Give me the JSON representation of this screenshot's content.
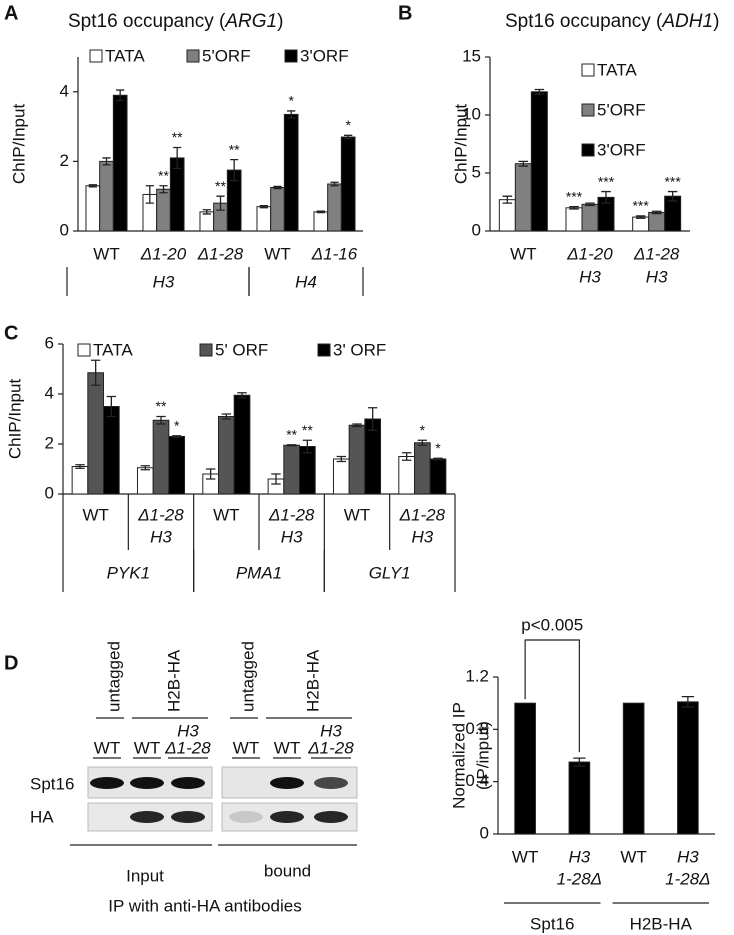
{
  "panels": [
    "A",
    "B",
    "C",
    "D"
  ],
  "chart_data": [
    {
      "type": "bar",
      "title": [
        "Spt16 occupancy (",
        "ARG1",
        ")"
      ],
      "ylabel": "ChIP/Input",
      "categories": [
        "WT",
        "Δ1-20",
        "Δ1-28",
        "WT",
        "Δ1-16"
      ],
      "groups": [
        "H3",
        "H3",
        "H3",
        "H4",
        "H4"
      ],
      "ylim": [
        0,
        5
      ],
      "yticks": [
        0,
        2,
        4
      ],
      "legend": "top",
      "series": [
        {
          "name": "TATA",
          "color": "#ffffff",
          "values": [
            1.3,
            1.05,
            0.55,
            0.7,
            0.55
          ],
          "errors": [
            0.03,
            0.25,
            0.06,
            0.03,
            0.02
          ],
          "stars": [
            null,
            null,
            null,
            null,
            null
          ]
        },
        {
          "name": "5'ORF",
          "color": "#808080",
          "values": [
            2.0,
            1.2,
            0.8,
            1.25,
            1.35
          ],
          "errors": [
            0.1,
            0.1,
            0.2,
            0.03,
            0.05
          ],
          "stars": [
            null,
            "**",
            "**",
            null,
            null
          ]
        },
        {
          "name": "3'ORF",
          "color": "#000000",
          "values": [
            3.9,
            2.1,
            1.75,
            3.35,
            2.7
          ],
          "errors": [
            0.15,
            0.3,
            0.3,
            0.1,
            0.05
          ],
          "stars": [
            null,
            "**",
            "**",
            "*",
            "*"
          ]
        }
      ]
    },
    {
      "type": "bar",
      "title": [
        "Spt16 occupancy (",
        "ADH1",
        ")"
      ],
      "ylabel": "ChIP/Input",
      "categories": [
        "WT",
        "Δ1-20",
        "Δ1-28"
      ],
      "category_line2": [
        null,
        "H3",
        "H3"
      ],
      "ylim": [
        0,
        15
      ],
      "yticks": [
        0,
        5,
        10,
        15
      ],
      "legend": "right",
      "series": [
        {
          "name": "TATA",
          "color": "#ffffff",
          "values": [
            2.7,
            2.0,
            1.2
          ],
          "errors": [
            0.3,
            0.1,
            0.1
          ],
          "stars": [
            null,
            "***",
            "***"
          ]
        },
        {
          "name": "5'ORF",
          "color": "#808080",
          "values": [
            5.8,
            2.3,
            1.6
          ],
          "errors": [
            0.2,
            0.1,
            0.1
          ],
          "stars": [
            null,
            null,
            null
          ]
        },
        {
          "name": "3'ORF",
          "color": "#000000",
          "values": [
            12.0,
            2.9,
            3.0
          ],
          "errors": [
            0.2,
            0.5,
            0.4
          ],
          "stars": [
            null,
            "***",
            "***"
          ]
        }
      ]
    },
    {
      "type": "bar",
      "ylabel": "ChIP/Input",
      "categories": [
        "WT",
        "Δ1-28",
        "WT",
        "Δ1-28",
        "WT",
        "Δ1-28"
      ],
      "category_line2": [
        null,
        "H3",
        null,
        "H3",
        null,
        "H3"
      ],
      "groups": [
        "PYK1",
        "PYK1",
        "PMA1",
        "PMA1",
        "GLY1",
        "GLY1"
      ],
      "ylim": [
        0,
        6
      ],
      "yticks": [
        0,
        2,
        4,
        6
      ],
      "legend": "top",
      "series": [
        {
          "name": "TATA",
          "color": "#ffffff",
          "values": [
            1.1,
            1.05,
            0.8,
            0.6,
            1.4,
            1.5
          ],
          "errors": [
            0.07,
            0.08,
            0.2,
            0.2,
            0.1,
            0.15
          ],
          "stars": [
            null,
            null,
            null,
            null,
            null,
            null
          ]
        },
        {
          "name": "5' ORF",
          "color": "#555555",
          "values": [
            4.85,
            2.95,
            3.1,
            1.95,
            2.75,
            2.05
          ],
          "errors": [
            0.5,
            0.15,
            0.1,
            0.02,
            0.05,
            0.1
          ],
          "stars": [
            null,
            "**",
            null,
            "**",
            null,
            "*"
          ]
        },
        {
          "name": "3' ORF",
          "color": "#000000",
          "values": [
            3.5,
            2.3,
            3.95,
            1.9,
            3.0,
            1.4
          ],
          "errors": [
            0.4,
            0.03,
            0.1,
            0.25,
            0.45,
            0.03
          ],
          "stars": [
            null,
            "*",
            null,
            "**",
            null,
            "*"
          ]
        }
      ]
    },
    {
      "type": "bar",
      "ylabel": [
        "Normalized IP",
        "(IP/input)"
      ],
      "categories": [
        "WT",
        "H3",
        "WT",
        "H3"
      ],
      "category_line2": [
        null,
        "1-28Δ",
        null,
        "1-28Δ"
      ],
      "groups": [
        "Spt16",
        "Spt16",
        "H2B-HA",
        "H2B-HA"
      ],
      "ylim": [
        0,
        1.2
      ],
      "yticks": [
        0,
        0.4,
        0.8,
        1.2
      ],
      "annotation": "p<0.005",
      "series": [
        {
          "color": "#000000",
          "values": [
            1.0,
            0.55,
            1.0,
            1.01
          ],
          "errors": [
            null,
            0.03,
            null,
            0.04
          ]
        }
      ]
    }
  ],
  "blot": {
    "lane_groups": [
      "untagged",
      "H2B-HA",
      "untagged",
      "H2B-HA"
    ],
    "lanes": [
      "WT",
      "WT",
      "H3",
      "WT",
      "WT",
      "H3"
    ],
    "lanes_line2": [
      null,
      null,
      "Δ1-28",
      null,
      null,
      "Δ1-28"
    ],
    "rows": [
      "Spt16",
      "HA"
    ],
    "fractions": [
      "Input",
      "bound"
    ],
    "caption": "IP with anti-HA antibodies"
  }
}
